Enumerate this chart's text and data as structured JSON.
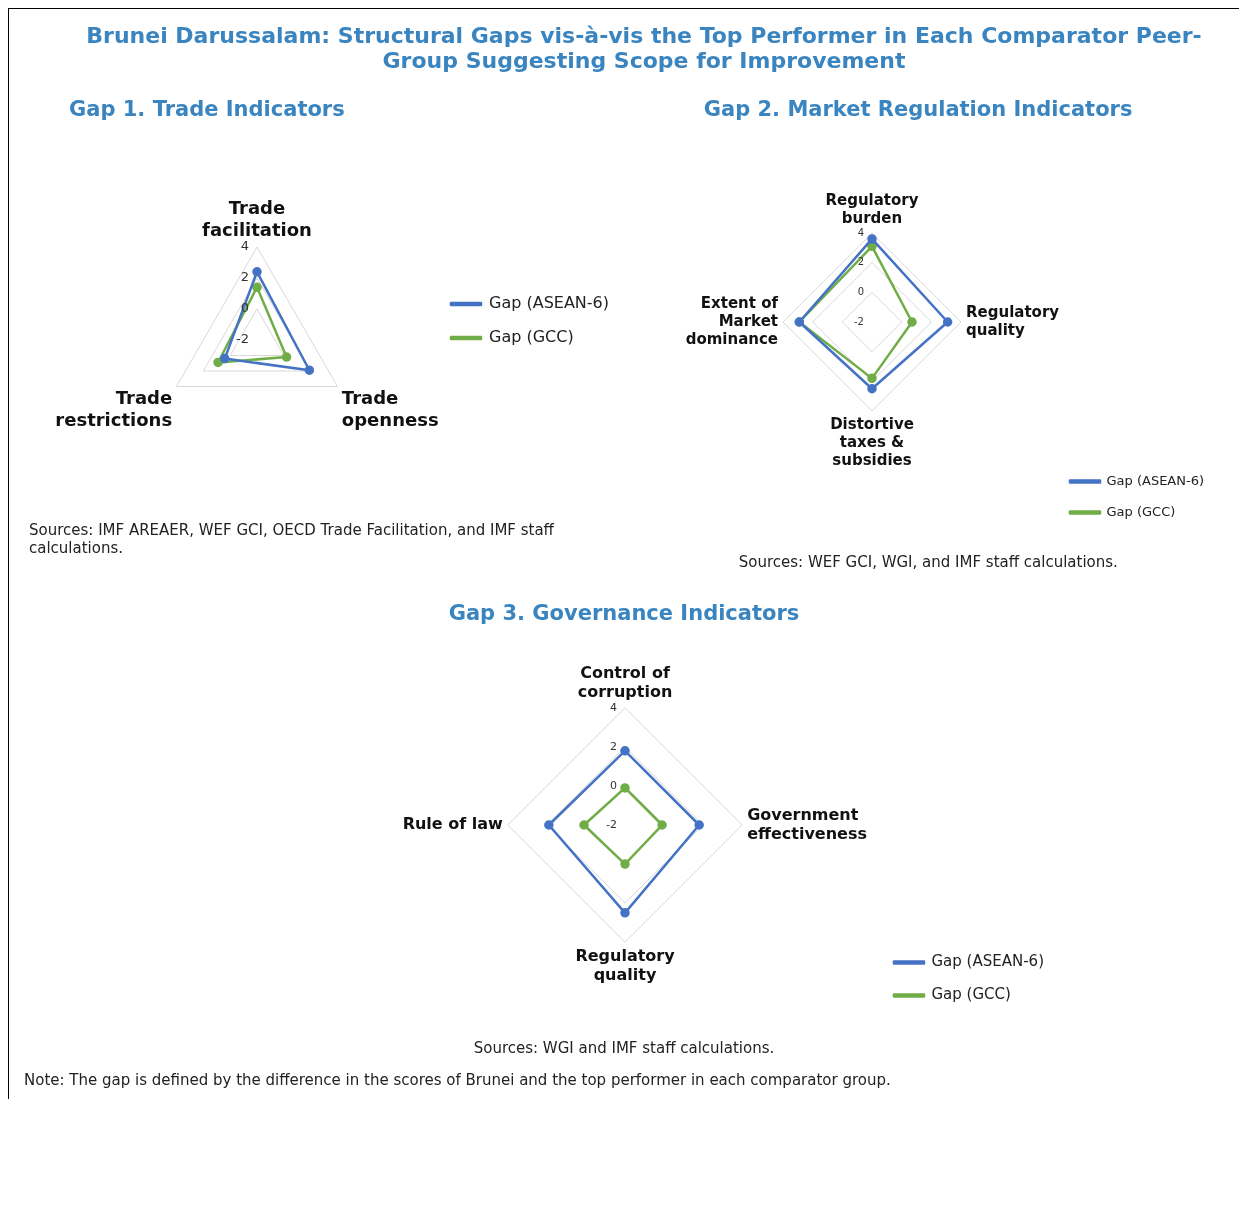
{
  "chart_data": [
    {
      "type": "radar",
      "title": "Brunei Darussalam: Structural Gaps vis-à-vis the Top Performer in Each Comparator Peer-Group Suggesting Scope for Improvement",
      "subtitle": "Gap 1. Trade Indicators",
      "categories": [
        "Trade facilitation",
        "Trade openness",
        "Trade restrictions"
      ],
      "series": [
        {
          "name": "Gap (ASEAN-6)",
          "color": "#4472c4",
          "values": [
            2.4,
            1.9,
            0.4
          ]
        },
        {
          "name": "Gap (GCC)",
          "color": "#70ad47",
          "values": [
            1.4,
            0.2,
            0.9
          ]
        }
      ],
      "ylim": [
        -2,
        4
      ],
      "yticks": [
        -2,
        0,
        2,
        4
      ],
      "grid": true,
      "legend": "right",
      "marker": "circle",
      "annotations": [
        "Sources: IMF AREAER, WEF GCI, OECD Trade Facilitation, and IMF staff calculations."
      ]
    },
    {
      "type": "radar",
      "title": "Gap 2. Market Regulation Indicators",
      "categories": [
        "Regulatory burden",
        "Regulatory quality",
        "Distortive taxes & subsidies",
        "Extent of Market dominance"
      ],
      "series": [
        {
          "name": "Gap (ASEAN-6)",
          "color": "#4472c4",
          "values": [
            3.6,
            3.1,
            2.5,
            2.9
          ]
        },
        {
          "name": "Gap (GCC)",
          "color": "#70ad47",
          "values": [
            3.1,
            0.7,
            1.8,
            2.9
          ]
        }
      ],
      "ylim": [
        -2,
        4
      ],
      "yticks": [
        -2,
        0,
        2,
        4
      ],
      "grid": true,
      "legend": "bottom right",
      "marker": "circle",
      "annotations": [
        "Sources: WEF GCI, WGI, and IMF staff calculations."
      ]
    },
    {
      "type": "radar",
      "title": "Gap 3. Governance Indicators",
      "categories": [
        "Control of corruption",
        "Government effectiveness",
        "Regulatory quality",
        "Rule of law"
      ],
      "series": [
        {
          "name": "Gap (ASEAN-6)",
          "color": "#4472c4",
          "values": [
            1.8,
            1.8,
            2.5,
            1.9
          ]
        },
        {
          "name": "Gap (GCC)",
          "color": "#70ad47",
          "values": [
            -0.1,
            -0.1,
            0.0,
            0.1
          ]
        }
      ],
      "ylim": [
        -2,
        4
      ],
      "yticks": [
        -2,
        0,
        2,
        4
      ],
      "grid": true,
      "legend": "bottom right",
      "marker": "circle",
      "annotations": [
        "Sources: WGI and IMF staff calculations.",
        "Note: The gap is defined by the difference in the scores of Brunei and the top performer in each comparator group."
      ]
    }
  ]
}
